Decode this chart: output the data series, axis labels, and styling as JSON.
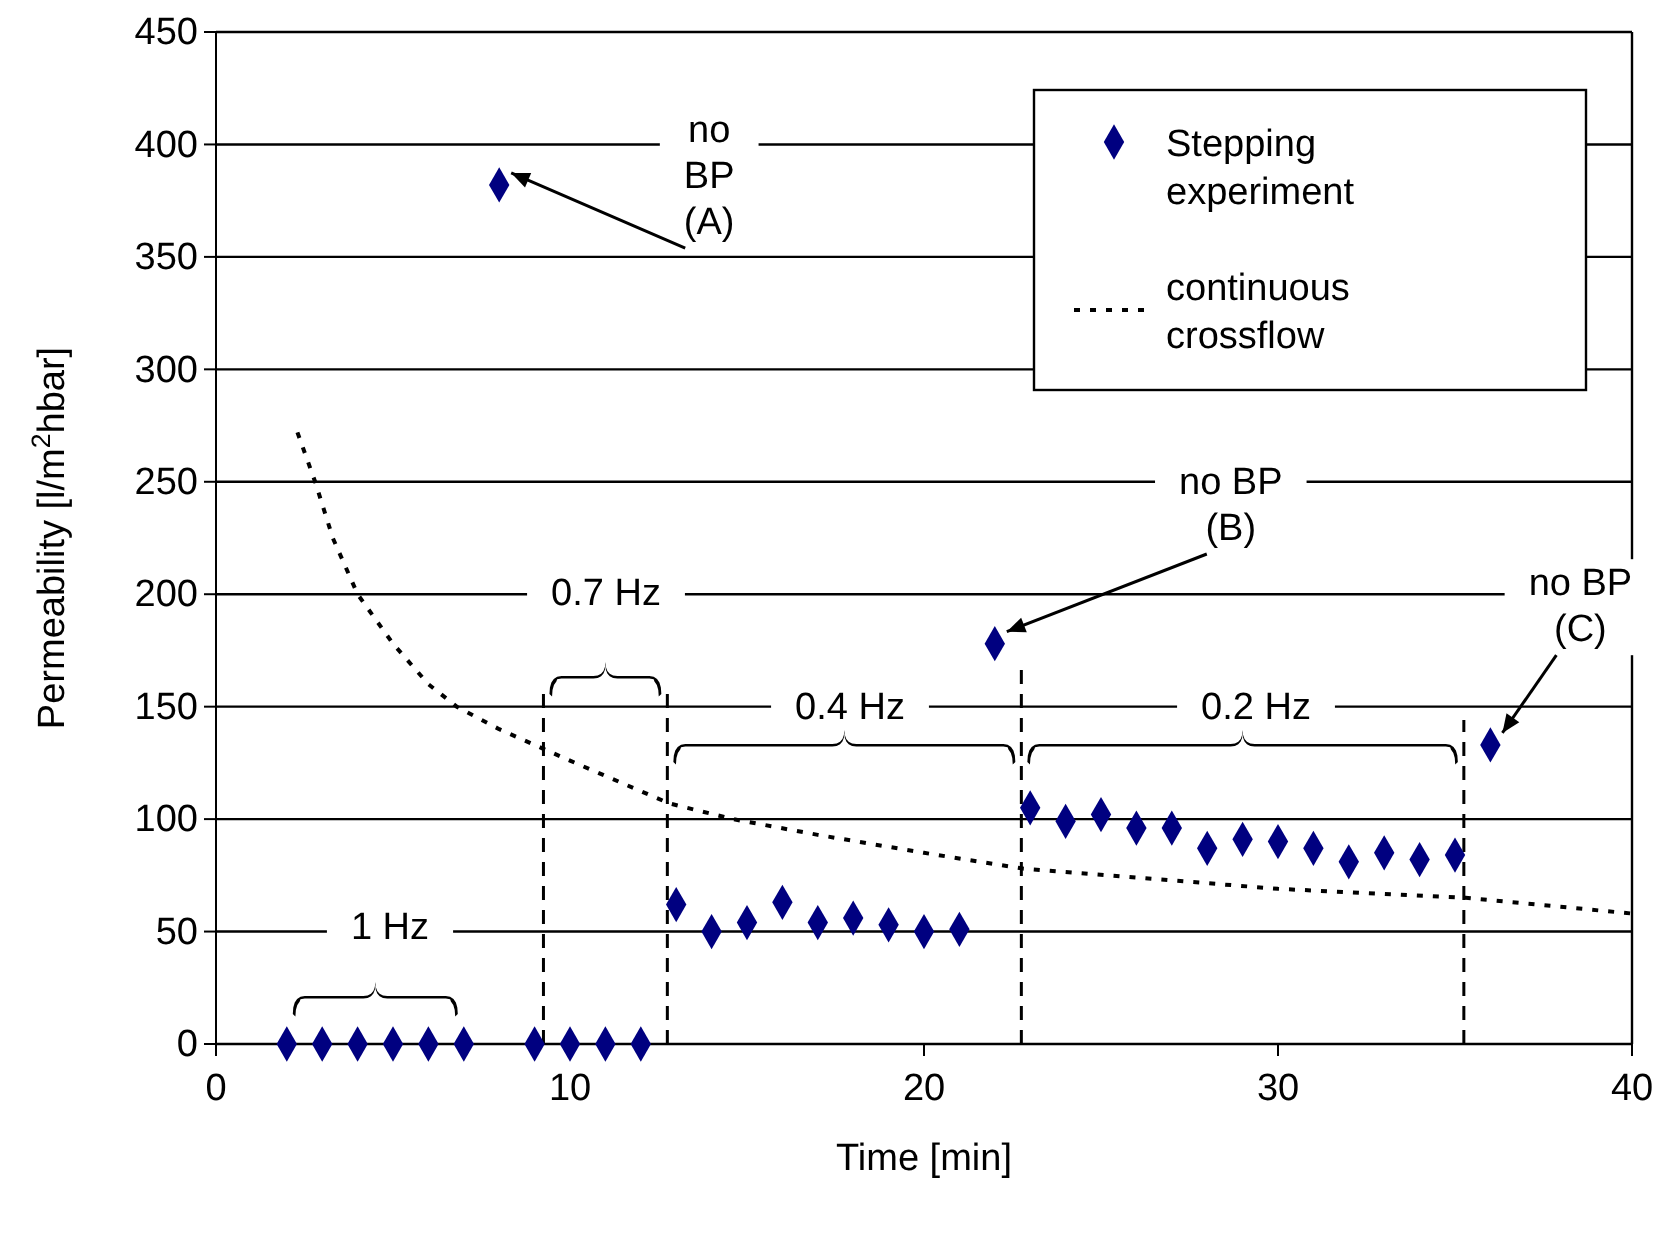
{
  "chart_data": {
    "type": "scatter",
    "xlabel": "Time [min]",
    "ylabel": "Permeability [l/m$^{2}$hbar]",
    "xlim": [
      0,
      40
    ],
    "xticks": [
      0,
      10,
      20,
      30,
      40
    ],
    "ylim": [
      0,
      450
    ],
    "yticks": [
      0,
      50,
      100,
      150,
      200,
      250,
      300,
      350,
      400,
      450
    ],
    "grid": "y",
    "legend": "top right",
    "series": [
      {
        "name": "Stepping experiment",
        "type": "scatter",
        "marker": "diamond",
        "color": "#000080",
        "x": [
          2,
          3,
          4,
          5,
          6,
          7,
          8,
          9,
          10,
          11,
          12,
          13,
          14,
          15,
          16,
          17,
          18,
          19,
          20,
          21,
          22,
          23,
          24,
          25,
          26,
          27,
          28,
          29,
          30,
          31,
          32,
          33,
          34,
          35,
          36
        ],
        "values": [
          0,
          0,
          0,
          0,
          0,
          0,
          382,
          0,
          0,
          0,
          0,
          62,
          50,
          54,
          63,
          54,
          56,
          53,
          50,
          51,
          178,
          105,
          99,
          102,
          96,
          96,
          87,
          91,
          90,
          87,
          81,
          85,
          82,
          84,
          133
        ]
      },
      {
        "name": "continuous crossflow",
        "type": "line",
        "marker": "none",
        "line_style": "dotted",
        "color": "#000000",
        "x": [
          2.3,
          2.8,
          3.3,
          4,
          5,
          6,
          6.8,
          8,
          10,
          12.8,
          14.6,
          17,
          20,
          22.8,
          26,
          30,
          35.3,
          40
        ],
        "values": [
          272,
          250,
          225,
          200,
          178,
          160,
          150,
          140,
          126,
          107,
          100,
          93,
          85,
          78,
          74,
          69,
          65,
          58
        ]
      }
    ],
    "ref_lines": [
      {
        "axis": "x",
        "value": 9.25,
        "line_style": "dashed"
      },
      {
        "axis": "x",
        "value": 12.75,
        "line_style": "dashed"
      },
      {
        "axis": "x",
        "value": 22.75,
        "line_style": "dashed"
      },
      {
        "axis": "x",
        "value": 35.25,
        "line_style": "dashed"
      }
    ],
    "annotations": [
      {
        "text": "no\nBP\n(A)",
        "x": 8,
        "y": 382
      },
      {
        "text": "no BP\n(B)",
        "x": 22,
        "y": 178
      },
      {
        "text": "no BP\n(C)",
        "x": 36,
        "y": 133
      },
      "1 Hz",
      "0.7 Hz",
      "0.4 Hz",
      "0.2 Hz"
    ]
  }
}
